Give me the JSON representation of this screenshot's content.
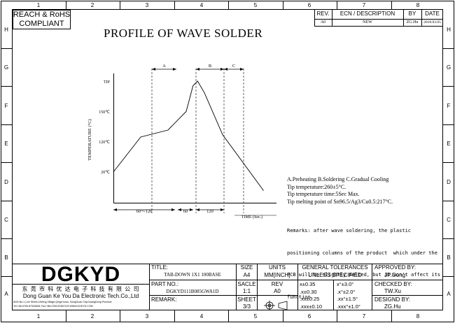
{
  "zones": {
    "top": [
      "1",
      "2",
      "3",
      "4",
      "5",
      "6",
      "7",
      "8"
    ],
    "bottom": [
      "1",
      "2",
      "3",
      "4",
      "5",
      "6",
      "7",
      "8"
    ],
    "left": [
      "H",
      "G",
      "F",
      "E",
      "D",
      "C",
      "B",
      "A"
    ],
    "right": [
      "H",
      "G",
      "F",
      "E",
      "D",
      "C",
      "B",
      "A"
    ]
  },
  "compliance": {
    "line1": "REACH & RoHS",
    "line2": "COMPLIANT"
  },
  "revision": {
    "headers": [
      "REV.",
      "ECN / DESCRIPTION",
      "BY",
      "DATE"
    ],
    "rows": [
      [
        "A0",
        "NEW",
        "ZG.Hu",
        "2018.03.05"
      ]
    ]
  },
  "page_title": "PROFILE OF WAVE SOLDER",
  "chart_data": {
    "type": "line",
    "title": "PROFILE OF WAVE SOLDER",
    "ylabel": "TEMPERATURE (°C)",
    "xlabel": "TIME (Sec.)",
    "y_tick_labels": [
      "20℃",
      "120℃",
      "150℃",
      "TIP"
    ],
    "phases": [
      "A",
      "B",
      "C"
    ],
    "x_segments": [
      "60～120",
      "60",
      "120"
    ],
    "points": [
      [
        0,
        20
      ],
      [
        60,
        95
      ],
      [
        120,
        110
      ],
      [
        160,
        150
      ],
      [
        175,
        205
      ],
      [
        185,
        215
      ],
      [
        200,
        190
      ],
      [
        240,
        100
      ],
      [
        330,
        -20
      ]
    ]
  },
  "notes": {
    "phases": "A.Preheating  B.Soldering  C.Gradual Cooling",
    "tip_temp": "Tip temperature:260±5°C.",
    "tip_time": "Tip temperature time:5Sec Max.",
    "melting": "Tip melting point of Sn96.5/Ag3/Cu0.5:217°C."
  },
  "remarks": [
    "Remarks: after wave soldering, the plastic",
    "positioning columns of the product  which under the",
    "PCB will be slightly melted, but it won't affect its",
    "function."
  ],
  "title_block": {
    "logo": "DGKYD",
    "company_cn": "东 莞 市 科 优 达 电 子 科 技 有 限 公 司",
    "company_en": "Dong Guan Ke You Da Electronic Tech.Co.,Ltd",
    "address1": "ADD:No.1 Live Street,LiWeng Village,Qingxi town, DongGuan City,GuangDong Province",
    "address2": "Tel:+86-0769-87334606; Fax:+86-0769-87667129  WWW.DGKYD.COM",
    "title_label": "TITLE:",
    "title_value": "TAB-DOWN 1X1 100BASE",
    "part_label": "PART NO.:",
    "part_value": "DGKYD111B085GWA1D",
    "remark_label": "REMARK:",
    "size_label": "SIZE",
    "size_value": "A4",
    "scale_label": "SACLE",
    "scale_value": "1:1",
    "sheet_label": "SHEET",
    "sheet_value": "3/3",
    "units_label": "UNITS",
    "units_value": "MM[INCH]",
    "rev_label": "REV",
    "rev_value": "A0",
    "tol_title1": "GENERAL TOLERANCES",
    "tol_title2": "UNLESS SPECIFIED",
    "tol": [
      [
        "x±0.35",
        "x°±3.0°"
      ],
      [
        ".x±0.30",
        ".x°±2.0°"
      ],
      [
        ".xx±0.25",
        ".xx°±1.5°"
      ],
      [
        ".xxx±0.10",
        ".xxx°±1.0°"
      ]
    ],
    "approved_label": "APPROVED BY:",
    "approved_value": "JP.Gong",
    "checked_label": "CHECKED BY:",
    "checked_value": "TW.Xu",
    "designed_label": "DESIGND BY:",
    "designed_value": "ZG.Hu"
  }
}
